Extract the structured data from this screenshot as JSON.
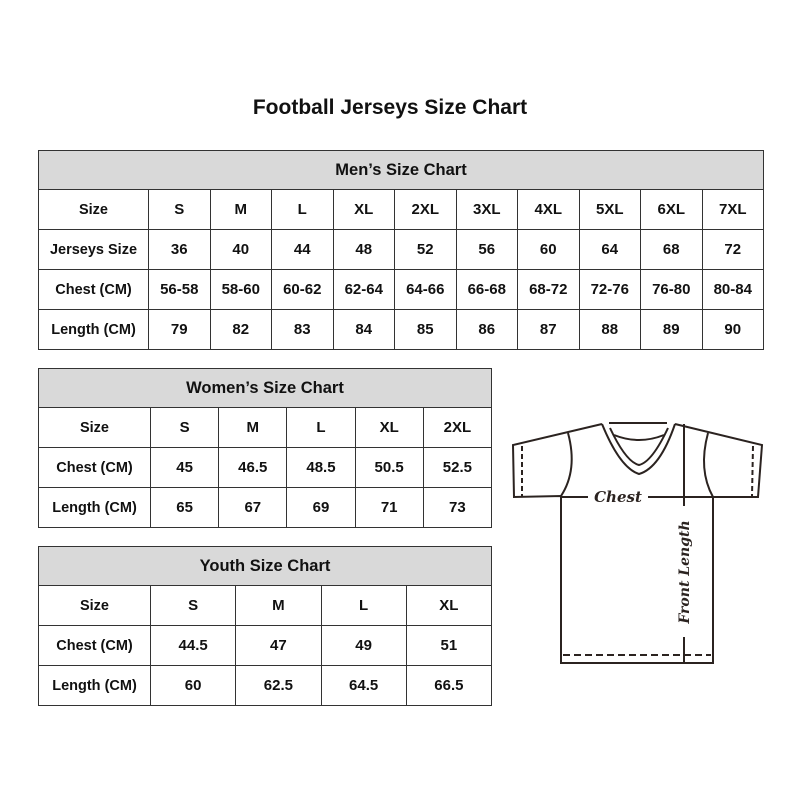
{
  "title": "Football Jerseys Size Chart",
  "tables": [
    {
      "id": "men",
      "caption": "Men’s Size Chart",
      "rows": [
        {
          "label": "Size",
          "values": [
            "S",
            "M",
            "L",
            "XL",
            "2XL",
            "3XL",
            "4XL",
            "5XL",
            "6XL",
            "7XL"
          ]
        },
        {
          "label": "Jerseys Size",
          "values": [
            "36",
            "40",
            "44",
            "48",
            "52",
            "56",
            "60",
            "64",
            "68",
            "72"
          ]
        },
        {
          "label": "Chest (CM)",
          "values": [
            "56-58",
            "58-60",
            "60-62",
            "62-64",
            "64-66",
            "66-68",
            "68-72",
            "72-76",
            "76-80",
            "80-84"
          ]
        },
        {
          "label": "Length (CM)",
          "values": [
            "79",
            "82",
            "83",
            "84",
            "85",
            "86",
            "87",
            "88",
            "89",
            "90"
          ]
        }
      ]
    },
    {
      "id": "women",
      "caption": "Women’s Size Chart",
      "rows": [
        {
          "label": "Size",
          "values": [
            "S",
            "M",
            "L",
            "XL",
            "2XL"
          ]
        },
        {
          "label": "Chest (CM)",
          "values": [
            "45",
            "46.5",
            "48.5",
            "50.5",
            "52.5"
          ]
        },
        {
          "label": "Length (CM)",
          "values": [
            "65",
            "67",
            "69",
            "71",
            "73"
          ]
        }
      ]
    },
    {
      "id": "youth",
      "caption": "Youth Size Chart",
      "rows": [
        {
          "label": "Size",
          "values": [
            "S",
            "M",
            "L",
            "XL"
          ]
        },
        {
          "label": "Chest (CM)",
          "values": [
            "44.5",
            "47",
            "49",
            "51"
          ]
        },
        {
          "label": "Length (CM)",
          "values": [
            "60",
            "62.5",
            "64.5",
            "66.5"
          ]
        }
      ]
    }
  ],
  "diagram": {
    "chest_label": "Chest",
    "length_label": "Front Length"
  },
  "colors": {
    "header_bg": "#d9d9d9",
    "border": "#333333",
    "line": "#2b2320"
  }
}
